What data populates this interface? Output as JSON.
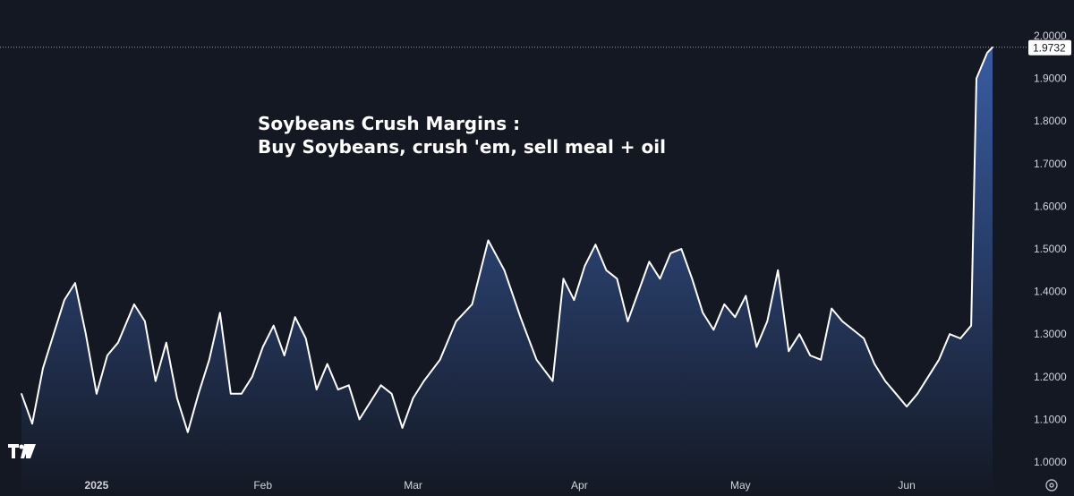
{
  "chart_data": {
    "type": "area",
    "title": "",
    "annotation_lines": [
      "Soybeans Crush Margins :",
      "Buy Soybeans, crush 'em, sell meal + oil"
    ],
    "xlabel": "",
    "ylabel": "",
    "ylim": [
      1.0,
      2.0
    ],
    "y_ticks": [
      "1.0000",
      "1.1000",
      "1.2000",
      "1.3000",
      "1.4000",
      "1.5000",
      "1.6000",
      "1.7000",
      "1.8000",
      "1.9000",
      "2.0000"
    ],
    "x_ticks": [
      {
        "label": "2025",
        "date": "2025-01-01",
        "bold": true
      },
      {
        "label": "Feb",
        "date": "2025-02-01",
        "bold": false
      },
      {
        "label": "Mar",
        "date": "2025-03-01",
        "bold": false
      },
      {
        "label": "Apr",
        "date": "2025-04-01",
        "bold": false
      },
      {
        "label": "May",
        "date": "2025-05-01",
        "bold": false
      },
      {
        "label": "Jun",
        "date": "2025-06-01",
        "bold": false
      }
    ],
    "last_value": "1.9732",
    "line_color": "#ffffff",
    "fill_color_top": "#3a5fa8",
    "fill_color_bottom": "#141823",
    "grid": false,
    "series": [
      {
        "x": [
          "2024-12-18",
          "2024-12-20",
          "2024-12-22",
          "2024-12-24",
          "2024-12-26",
          "2024-12-28",
          "2024-12-30",
          "2025-01-01",
          "2025-01-03",
          "2025-01-05",
          "2025-01-08",
          "2025-01-10",
          "2025-01-12",
          "2025-01-14",
          "2025-01-16",
          "2025-01-18",
          "2025-01-20",
          "2025-01-22",
          "2025-01-24",
          "2025-01-26",
          "2025-01-28",
          "2025-01-30",
          "2025-02-01",
          "2025-02-03",
          "2025-02-05",
          "2025-02-07",
          "2025-02-09",
          "2025-02-11",
          "2025-02-13",
          "2025-02-15",
          "2025-02-17",
          "2025-02-19",
          "2025-02-21",
          "2025-02-23",
          "2025-02-25",
          "2025-02-27",
          "2025-03-01",
          "2025-03-03",
          "2025-03-06",
          "2025-03-09",
          "2025-03-12",
          "2025-03-15",
          "2025-03-18",
          "2025-03-21",
          "2025-03-24",
          "2025-03-27",
          "2025-03-29",
          "2025-03-31",
          "2025-04-02",
          "2025-04-04",
          "2025-04-06",
          "2025-04-08",
          "2025-04-10",
          "2025-04-12",
          "2025-04-14",
          "2025-04-16",
          "2025-04-18",
          "2025-04-20",
          "2025-04-22",
          "2025-04-24",
          "2025-04-26",
          "2025-04-28",
          "2025-04-30",
          "2025-05-02",
          "2025-05-04",
          "2025-05-06",
          "2025-05-08",
          "2025-05-10",
          "2025-05-12",
          "2025-05-14",
          "2025-05-16",
          "2025-05-18",
          "2025-05-20",
          "2025-05-22",
          "2025-05-24",
          "2025-05-26",
          "2025-05-28",
          "2025-05-30",
          "2025-06-01",
          "2025-06-03",
          "2025-06-05",
          "2025-06-07",
          "2025-06-09",
          "2025-06-11",
          "2025-06-13",
          "2025-06-14",
          "2025-06-15",
          "2025-06-16",
          "2025-06-17"
        ],
        "values": [
          1.16,
          1.09,
          1.22,
          1.3,
          1.38,
          1.42,
          1.3,
          1.16,
          1.25,
          1.28,
          1.37,
          1.33,
          1.19,
          1.28,
          1.15,
          1.07,
          1.16,
          1.24,
          1.35,
          1.16,
          1.16,
          1.2,
          1.27,
          1.32,
          1.25,
          1.34,
          1.29,
          1.17,
          1.23,
          1.17,
          1.18,
          1.1,
          1.14,
          1.18,
          1.16,
          1.08,
          1.15,
          1.19,
          1.24,
          1.33,
          1.37,
          1.52,
          1.45,
          1.34,
          1.24,
          1.19,
          1.43,
          1.38,
          1.46,
          1.51,
          1.45,
          1.43,
          1.33,
          1.4,
          1.47,
          1.43,
          1.49,
          1.5,
          1.43,
          1.35,
          1.31,
          1.37,
          1.34,
          1.39,
          1.27,
          1.33,
          1.45,
          1.26,
          1.3,
          1.25,
          1.24,
          1.36,
          1.33,
          1.31,
          1.29,
          1.23,
          1.19,
          1.16,
          1.13,
          1.16,
          1.2,
          1.24,
          1.3,
          1.29,
          1.32,
          1.9,
          1.93,
          1.96,
          1.9732
        ]
      }
    ]
  },
  "logo_text": "TV",
  "settings_icon": "gear-icon"
}
